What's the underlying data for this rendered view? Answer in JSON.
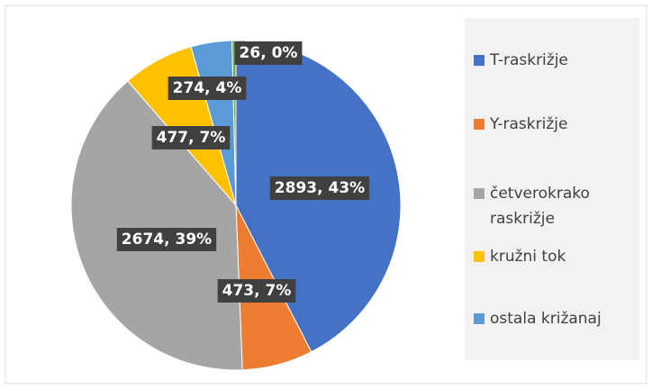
{
  "chart_data": {
    "type": "pie",
    "categories": [
      "T-raskrižje",
      "Y-raskrižje",
      "četverokrako raskrižje",
      "kružni tok",
      "ostala križanaj",
      null
    ],
    "values": [
      2893,
      473,
      2674,
      477,
      274,
      26
    ],
    "value_labels": [
      "2893, 43%",
      "473, 7%",
      "2674, 39%",
      "477, 7%",
      "274, 4%",
      "26, 0%"
    ],
    "colors": [
      "#4472c4",
      "#ed7d31",
      "#a5a5a5",
      "#ffc000",
      "#5b9bd5",
      "#70ad47"
    ],
    "legend": "right"
  }
}
